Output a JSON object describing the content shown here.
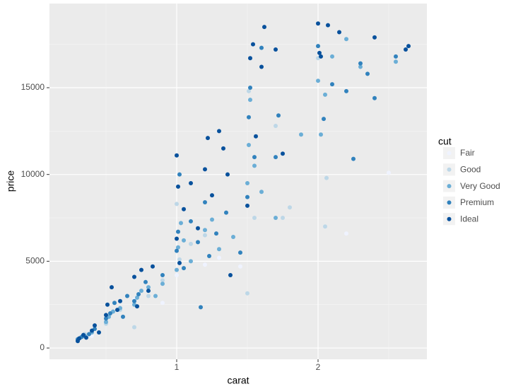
{
  "chart_data": {
    "type": "scatter",
    "xlabel": "carat",
    "ylabel": "price",
    "xlim": [
      0.1,
      2.77
    ],
    "ylim": [
      -650,
      19850
    ],
    "xticks": [
      1,
      2
    ],
    "yticks": [
      0,
      5000,
      10000,
      15000
    ],
    "minor_xticks": [
      0.5,
      1.5,
      2.5
    ],
    "minor_yticks": [
      2500,
      7500,
      12500,
      17500
    ],
    "grid": true,
    "legend_title": "cut",
    "legend_position": "right",
    "series": [
      {
        "name": "Fair",
        "color": "#eff3ff",
        "x": [
          0.4,
          0.7,
          0.9,
          1.0,
          1.2,
          1.3,
          1.45,
          2.05,
          2.2,
          2.5
        ],
        "values": [
          700,
          2800,
          2600,
          4200,
          4800,
          5200,
          4700,
          7000,
          6600,
          10100
        ]
      },
      {
        "name": "Good",
        "color": "#bdd7e7",
        "x": [
          0.3,
          0.35,
          0.5,
          0.6,
          0.7,
          0.8,
          0.9,
          1.0,
          1.02,
          1.1,
          1.2,
          1.5,
          1.51,
          1.55,
          1.7,
          1.75,
          1.8,
          2.0,
          2.05,
          2.06
        ],
        "values": [
          500,
          800,
          1400,
          2200,
          1200,
          3000,
          3900,
          8300,
          5100,
          6000,
          6500,
          3150,
          14800,
          7500,
          12800,
          7500,
          8100,
          16700,
          7000,
          9800
        ]
      },
      {
        "name": "Very Good",
        "color": "#6baed6",
        "x": [
          0.3,
          0.32,
          0.35,
          0.4,
          0.5,
          0.52,
          0.55,
          0.6,
          0.7,
          0.72,
          0.75,
          0.8,
          0.85,
          0.9,
          1.0,
          1.01,
          1.03,
          1.05,
          1.1,
          1.2,
          1.25,
          1.3,
          1.4,
          1.5,
          1.51,
          1.52,
          1.55,
          1.6,
          1.7,
          1.88,
          2.0,
          2.02,
          2.05,
          2.1,
          2.2,
          2.3,
          2.55
        ],
        "values": [
          450,
          600,
          700,
          900,
          1500,
          1800,
          2100,
          2300,
          2500,
          2900,
          3300,
          3500,
          3000,
          3700,
          4500,
          5800,
          7200,
          6200,
          5000,
          6800,
          7400,
          5700,
          6400,
          9500,
          11700,
          14300,
          10500,
          9000,
          7500,
          12300,
          15400,
          12300,
          14600,
          16800,
          17800,
          16200,
          16500
        ]
      },
      {
        "name": "Premium",
        "color": "#3182bd",
        "x": [
          0.3,
          0.33,
          0.38,
          0.42,
          0.5,
          0.53,
          0.56,
          0.62,
          0.65,
          0.7,
          0.73,
          0.78,
          0.9,
          1.0,
          1.01,
          1.02,
          1.05,
          1.1,
          1.15,
          1.17,
          1.2,
          1.23,
          1.28,
          1.35,
          1.45,
          1.5,
          1.51,
          1.52,
          1.55,
          1.6,
          1.7,
          1.72,
          2.0,
          2.04,
          2.1,
          2.2,
          2.25,
          2.3,
          2.35,
          2.4,
          2.55
        ],
        "values": [
          500,
          650,
          800,
          1100,
          1700,
          2000,
          2600,
          1800,
          3000,
          2700,
          3100,
          3800,
          4200,
          5600,
          6700,
          10000,
          4600,
          7300,
          6100,
          2350,
          8400,
          5300,
          6600,
          7800,
          5500,
          8700,
          13300,
          15000,
          11000,
          17300,
          11000,
          13400,
          17400,
          13200,
          15200,
          14800,
          10900,
          16400,
          15800,
          14400,
          16800
        ]
      },
      {
        "name": "Ideal",
        "color": "#08519c",
        "x": [
          0.3,
          0.31,
          0.34,
          0.36,
          0.4,
          0.42,
          0.45,
          0.5,
          0.51,
          0.54,
          0.58,
          0.6,
          0.7,
          0.72,
          0.75,
          0.8,
          0.83,
          1.0,
          1.0,
          1.01,
          1.02,
          1.05,
          1.1,
          1.15,
          1.2,
          1.22,
          1.25,
          1.3,
          1.33,
          1.36,
          1.38,
          1.5,
          1.52,
          1.54,
          1.56,
          1.6,
          1.62,
          1.7,
          1.75,
          2.0,
          2.01,
          2.02,
          2.07,
          2.15,
          2.4,
          2.62,
          2.64
        ],
        "values": [
          400,
          550,
          750,
          600,
          1000,
          1300,
          900,
          1900,
          2500,
          3500,
          2200,
          2700,
          4100,
          2400,
          4500,
          3300,
          4700,
          6300,
          11100,
          9300,
          4900,
          8000,
          9500,
          6900,
          10300,
          12100,
          8800,
          12500,
          11500,
          10000,
          4200,
          8200,
          16700,
          17500,
          12200,
          16200,
          18500,
          17200,
          11200,
          18700,
          17000,
          16800,
          18600,
          18200,
          17900,
          17200,
          17400
        ]
      }
    ]
  }
}
